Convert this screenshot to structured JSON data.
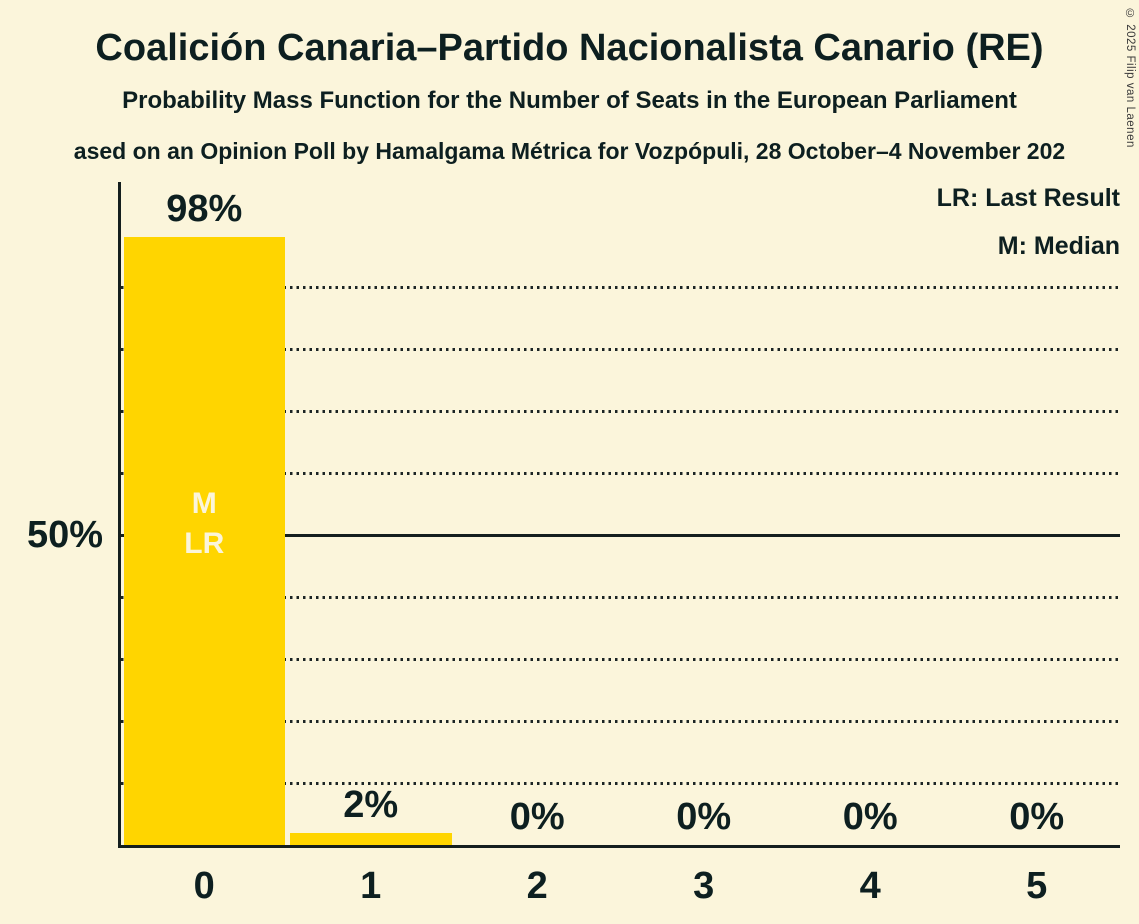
{
  "title": "Coalición Canaria–Partido Nacionalista Canario (RE)",
  "subtitle": "Probability Mass Function for the Number of Seats in the European Parliament",
  "subsubtitle": "ased on an Opinion Poll by Hamalgama Métrica for Vozpópuli, 28 October–4 November 202",
  "copyright": "© 2025 Filip van Laenen",
  "legend": {
    "last_result": "LR: Last Result",
    "median": "M: Median"
  },
  "y_axis_label": "50%",
  "chart_data": {
    "type": "bar",
    "categories": [
      "0",
      "1",
      "2",
      "3",
      "4",
      "5"
    ],
    "values": [
      98,
      2,
      0,
      0,
      0,
      0
    ],
    "value_labels": [
      "98%",
      "2%",
      "0%",
      "0%",
      "0%",
      "0%"
    ],
    "annotations": [
      {
        "column": 0,
        "lines": [
          "M",
          "LR"
        ]
      }
    ],
    "ylim": [
      0,
      107
    ],
    "gridlines_pct": [
      10,
      20,
      30,
      40,
      50,
      60,
      70,
      80,
      90
    ],
    "solid_gridline_pct": 50,
    "grid": "dotted-horizontal",
    "legend_position": "top-right",
    "colors": {
      "bar": "#FFD500",
      "background": "#FBF5DB",
      "text": "#0D1F20",
      "bar_annotation_text": "#FBF5DB"
    }
  }
}
